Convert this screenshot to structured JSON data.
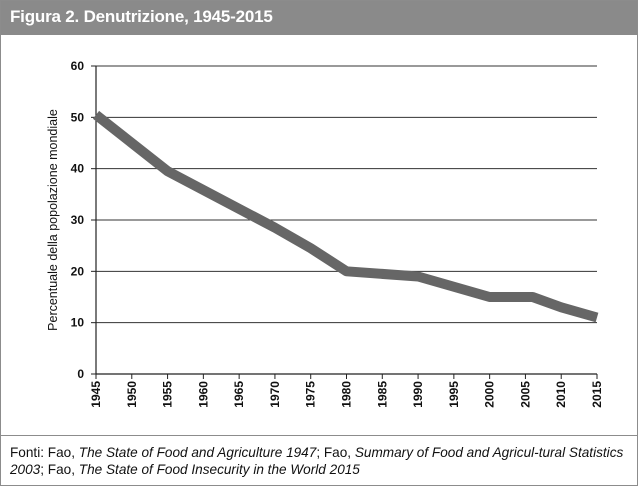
{
  "title": "Figura 2. Denutrizione, 1945-2015",
  "source": {
    "segments": [
      {
        "text": "Fonti: Fao, ",
        "italic": false
      },
      {
        "text": "The State of Food and Agriculture 1947",
        "italic": true
      },
      {
        "text": "; Fao, ",
        "italic": false
      },
      {
        "text": "Summary of Food and Agricul-",
        "italic": true
      },
      {
        "text": "tural Statistics 2003",
        "italic": true
      },
      {
        "text": "; Fao, ",
        "italic": false
      },
      {
        "text": "The State of Food Insecurity in the World 2015",
        "italic": true
      }
    ]
  },
  "chart_data": {
    "type": "line",
    "title": "Figura 2. Denutrizione, 1945-2015",
    "xlabel": "",
    "ylabel": "Percentuale della popolazione mondiale",
    "x_ticks": [
      "1945",
      "1950",
      "1955",
      "1960",
      "1965",
      "1970",
      "1975",
      "1980",
      "1985",
      "1990",
      "1995",
      "2000",
      "2005",
      "2010",
      "2015"
    ],
    "y_ticks": [
      "0",
      "10",
      "20",
      "30",
      "40",
      "50",
      "60"
    ],
    "xlim": [
      1945,
      2015
    ],
    "ylim": [
      0,
      60
    ],
    "grid": "horizontal",
    "legend": "none",
    "line_color": "#666666",
    "series": [
      {
        "x": [
          1945,
          1955,
          1970,
          1975,
          1980,
          1990,
          2000,
          2006,
          2010,
          2015
        ],
        "values": [
          50.5,
          39.5,
          28.5,
          24.5,
          20,
          19,
          15,
          15,
          13,
          11
        ]
      }
    ]
  }
}
